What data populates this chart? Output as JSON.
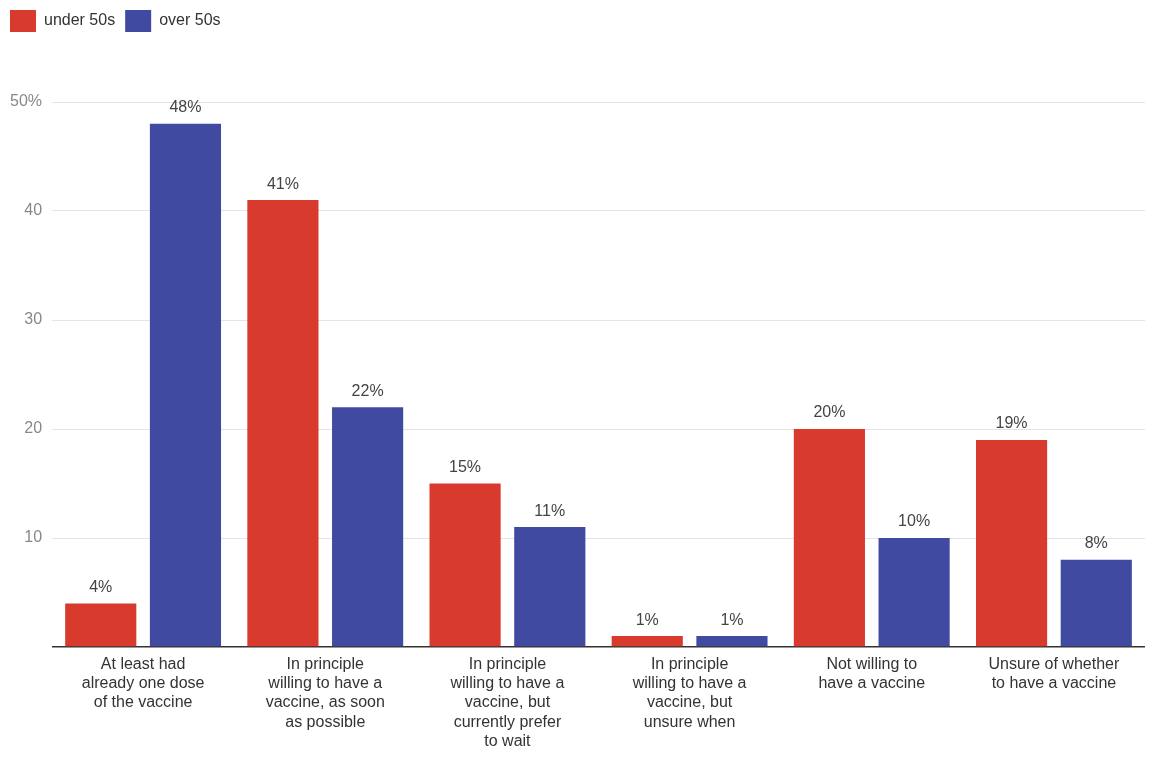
{
  "chart_data": {
    "type": "bar",
    "categories": [
      "At least had already one dose of the vaccine",
      "In principle willing to have a vaccine, as soon as possible",
      "In principle willing to have a vaccine, but currently prefer to wait",
      "In principle willing to have a vaccine, but unsure when",
      "Not willing to have a vaccine",
      "Unsure of whether to have a vaccine"
    ],
    "series": [
      {
        "name": "under 50s",
        "color": "#d83a2e",
        "values": [
          4,
          41,
          15,
          1,
          20,
          19
        ],
        "value_labels": [
          "4%",
          "41%",
          "15%",
          "1%",
          "20%",
          "19%"
        ]
      },
      {
        "name": "over 50s",
        "color": "#3f4aa0",
        "values": [
          48,
          22,
          11,
          1,
          10,
          8
        ],
        "value_labels": [
          "48%",
          "22%",
          "11%",
          "1%",
          "10%",
          "8%"
        ]
      }
    ],
    "ylim": [
      0,
      50
    ],
    "yticks": [
      {
        "value": 0,
        "label": null
      },
      10,
      20,
      30,
      40,
      {
        "value": 50,
        "label": "50%"
      }
    ],
    "grid": "y",
    "legend": "top left"
  }
}
